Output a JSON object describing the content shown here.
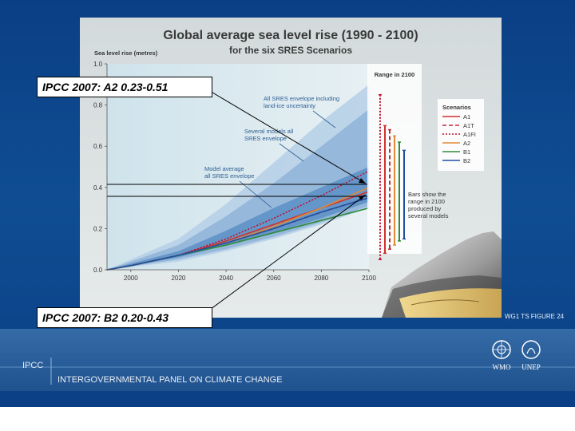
{
  "callouts": {
    "a2": "IPCC 2007: A2 0.23-0.51",
    "b2": "IPCC 2007: B2 0.20-0.43"
  },
  "footer": {
    "org_abbrev": "IPCC",
    "org_full": "INTERGOVERNMENTAL PANEL ON CLIMATE CHANGE",
    "logo_left_text": "WMO",
    "logo_right_text": "UNEP",
    "figure_ref": "WG1 TS FIGURE 24"
  },
  "colors": {
    "slide_bg": "#0f4d92",
    "footer_band": "#2a5f9c",
    "figure_panel": "#d9dfe0",
    "envelope_outer": "#b5cfe6",
    "envelope_mid": "#8fb3d8",
    "envelope_inner": "#5d8fc6",
    "A1": "#d0302e",
    "A1T": "#c02a38",
    "A1FI": "#c0102b",
    "A2": "#e08a32",
    "B1": "#2e8b3a",
    "B2": "#1f4fa0"
  },
  "chart_data": {
    "type": "line",
    "title": "Global average sea level rise (1990 - 2100)",
    "subtitle": "for the six SRES Scenarios",
    "ylabel": "Sea level rise (metres)",
    "xlabel": "",
    "xlim": [
      1990,
      2100
    ],
    "ylim": [
      0,
      1.0
    ],
    "xticks": [
      "2000",
      "2020",
      "2040",
      "2060",
      "2080",
      "2100"
    ],
    "yticks": [
      "0.0",
      "0.2",
      "0.4",
      "0.6",
      "0.8",
      "1.0"
    ],
    "grid": false,
    "legend": {
      "title": "Scenarios",
      "placement": "right",
      "entries": [
        "A1",
        "A1T",
        "A1FI",
        "A2",
        "B1",
        "B2"
      ]
    },
    "range_box_title": "Range in 2100",
    "annotations": [
      "All SRES envelope including land-ice uncertainty",
      "Several models all SRES envelope",
      "Model average all SRES envelope",
      "Bars show the range in 2100 produced by several models"
    ],
    "envelopes": [
      {
        "x": [
          1990,
          2020,
          2040,
          2060,
          2080,
          2100
        ],
        "lower": [
          0,
          0.04,
          0.09,
          0.15,
          0.22,
          0.3
        ],
        "upper": [
          0,
          0.15,
          0.32,
          0.52,
          0.72,
          0.9
        ]
      },
      {
        "x": [
          1990,
          2020,
          2040,
          2060,
          2080,
          2100
        ],
        "lower": [
          0,
          0.05,
          0.1,
          0.16,
          0.23,
          0.31
        ],
        "upper": [
          0,
          0.12,
          0.26,
          0.42,
          0.6,
          0.78
        ]
      },
      {
        "x": [
          1990,
          2020,
          2040,
          2060,
          2080,
          2100
        ],
        "lower": [
          0,
          0.06,
          0.12,
          0.18,
          0.25,
          0.33
        ],
        "upper": [
          0,
          0.09,
          0.19,
          0.3,
          0.4,
          0.5
        ]
      }
    ],
    "series": [
      {
        "name": "A1",
        "x": [
          1990,
          2000,
          2020,
          2040,
          2060,
          2080,
          2100
        ],
        "values": [
          0,
          0.02,
          0.07,
          0.14,
          0.22,
          0.3,
          0.38
        ]
      },
      {
        "name": "A1T",
        "x": [
          1990,
          2000,
          2020,
          2040,
          2060,
          2080,
          2100
        ],
        "values": [
          0,
          0.02,
          0.07,
          0.13,
          0.2,
          0.28,
          0.35
        ]
      },
      {
        "name": "A1FI",
        "x": [
          1990,
          2000,
          2020,
          2040,
          2060,
          2080,
          2100
        ],
        "values": [
          0,
          0.02,
          0.07,
          0.15,
          0.25,
          0.36,
          0.48
        ]
      },
      {
        "name": "A2",
        "x": [
          1990,
          2000,
          2020,
          2040,
          2060,
          2080,
          2100
        ],
        "values": [
          0,
          0.02,
          0.07,
          0.13,
          0.21,
          0.3,
          0.4
        ]
      },
      {
        "name": "B1",
        "x": [
          1990,
          2000,
          2020,
          2040,
          2060,
          2080,
          2100
        ],
        "values": [
          0,
          0.02,
          0.07,
          0.12,
          0.18,
          0.24,
          0.3
        ]
      },
      {
        "name": "B2",
        "x": [
          1990,
          2000,
          2020,
          2040,
          2060,
          2080,
          2100
        ],
        "values": [
          0,
          0.02,
          0.07,
          0.13,
          0.2,
          0.28,
          0.35
        ]
      }
    ],
    "range_bars": [
      {
        "name": "A1FI",
        "low": 0.05,
        "high": 0.85
      },
      {
        "name": "A1",
        "low": 0.08,
        "high": 0.7
      },
      {
        "name": "A1T",
        "low": 0.1,
        "high": 0.68
      },
      {
        "name": "A2",
        "low": 0.12,
        "high": 0.65
      },
      {
        "name": "B1",
        "low": 0.14,
        "high": 0.62
      },
      {
        "name": "B2",
        "low": 0.15,
        "high": 0.58
      }
    ]
  }
}
